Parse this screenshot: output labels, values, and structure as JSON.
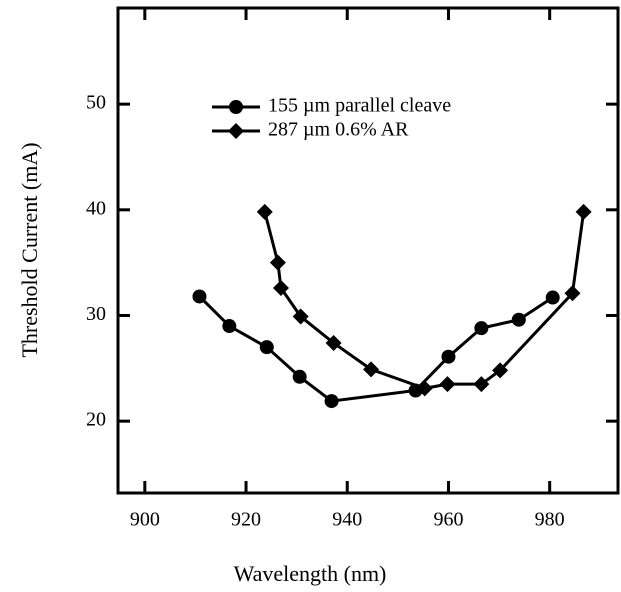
{
  "chart_data": {
    "type": "line",
    "x_label": "Wavelength (nm)",
    "y_label": "Threshold Current (mA)",
    "xlim": [
      894.7,
      993.5
    ],
    "xticks": [
      900,
      920,
      940,
      960,
      980
    ],
    "ylim": [
      13.2,
      59.1
    ],
    "yticks": [
      20,
      30,
      40,
      50
    ],
    "legend": "upper left",
    "series": [
      {
        "name": "155 µm parallel cleave",
        "color": "#000000",
        "marker": "circle",
        "x": [
          910.8,
          916.7,
          924.1,
          930.6,
          936.9,
          953.5,
          960.0,
          966.5,
          973.9,
          980.6
        ],
        "values": [
          31.8,
          29.0,
          27.0,
          24.2,
          21.9,
          22.9,
          26.1,
          28.8,
          29.6,
          31.7
        ]
      },
      {
        "name": "287 µm 0.6% AR",
        "color": "#000000",
        "marker": "diamond",
        "x": [
          923.7,
          926.3,
          926.9,
          930.8,
          937.3,
          944.7,
          955.3,
          959.8,
          966.5,
          970.2,
          984.5,
          986.7
        ],
        "values": [
          39.8,
          35.0,
          32.6,
          29.9,
          27.4,
          24.9,
          23.1,
          23.5,
          23.5,
          24.8,
          32.1,
          39.8
        ]
      }
    ]
  }
}
